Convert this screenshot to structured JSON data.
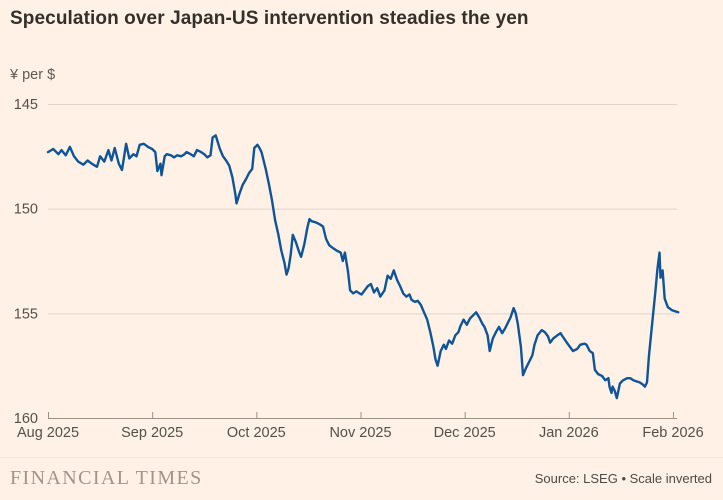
{
  "header": {
    "title": "Speculation over Japan-US intervention steadies the yen"
  },
  "footer": {
    "brand": "FINANCIAL TIMES",
    "source": "Source: LSEG • Scale inverted"
  },
  "chart_data": {
    "type": "line",
    "title": "Speculation over Japan-US intervention steadies the yen",
    "unit_label": "¥ per $",
    "scale_note": "Scale inverted",
    "grid": true,
    "legend": "none",
    "colors": {
      "background": "#FFF1E5",
      "line": "#0F5499",
      "gridline": "#E2D5C7",
      "axis": "#9C9186",
      "tick_label": "#54504A",
      "title_text": "#33302C",
      "brand_text": "#A29487",
      "source_text": "#4F4A45"
    },
    "x_axis": {
      "ticks": [
        "Aug 2025",
        "Sep 2025",
        "Oct 2025",
        "Nov 2025",
        "Dec 2025",
        "Jan 2026",
        "Feb 2026"
      ],
      "unit": "months"
    },
    "y_axis": {
      "ticks": [
        145,
        150,
        155,
        160
      ],
      "range": [
        145,
        160
      ],
      "inverted": true
    },
    "series": [
      {
        "name": "Yen per US dollar",
        "x_unit": "months since 1 Aug 2025",
        "points": [
          [
            0.0,
            147.3
          ],
          [
            0.05,
            147.15
          ],
          [
            0.1,
            147.4
          ],
          [
            0.13,
            147.2
          ],
          [
            0.17,
            147.45
          ],
          [
            0.21,
            147.05
          ],
          [
            0.25,
            147.5
          ],
          [
            0.29,
            147.75
          ],
          [
            0.34,
            147.9
          ],
          [
            0.38,
            147.7
          ],
          [
            0.42,
            147.85
          ],
          [
            0.47,
            148.0
          ],
          [
            0.5,
            147.5
          ],
          [
            0.54,
            147.75
          ],
          [
            0.58,
            147.2
          ],
          [
            0.61,
            147.7
          ],
          [
            0.64,
            147.1
          ],
          [
            0.68,
            147.85
          ],
          [
            0.71,
            148.15
          ],
          [
            0.75,
            146.9
          ],
          [
            0.78,
            147.6
          ],
          [
            0.82,
            147.4
          ],
          [
            0.85,
            147.5
          ],
          [
            0.88,
            146.95
          ],
          [
            0.92,
            146.9
          ],
          [
            0.96,
            147.05
          ],
          [
            1.0,
            147.15
          ],
          [
            1.03,
            147.3
          ],
          [
            1.05,
            148.2
          ],
          [
            1.08,
            147.85
          ],
          [
            1.09,
            148.4
          ],
          [
            1.12,
            147.5
          ],
          [
            1.14,
            147.4
          ],
          [
            1.18,
            147.45
          ],
          [
            1.21,
            147.55
          ],
          [
            1.24,
            147.45
          ],
          [
            1.28,
            147.5
          ],
          [
            1.31,
            147.4
          ],
          [
            1.33,
            147.3
          ],
          [
            1.37,
            147.4
          ],
          [
            1.4,
            147.5
          ],
          [
            1.43,
            147.2
          ],
          [
            1.47,
            147.3
          ],
          [
            1.5,
            147.4
          ],
          [
            1.53,
            147.55
          ],
          [
            1.56,
            147.45
          ],
          [
            1.58,
            146.6
          ],
          [
            1.61,
            146.5
          ],
          [
            1.65,
            147.15
          ],
          [
            1.68,
            147.5
          ],
          [
            1.71,
            147.7
          ],
          [
            1.74,
            147.95
          ],
          [
            1.77,
            148.5
          ],
          [
            1.8,
            149.35
          ],
          [
            1.81,
            149.75
          ],
          [
            1.84,
            149.25
          ],
          [
            1.87,
            148.85
          ],
          [
            1.9,
            148.6
          ],
          [
            1.93,
            148.3
          ],
          [
            1.96,
            148.1
          ],
          [
            1.98,
            147.1
          ],
          [
            2.01,
            146.95
          ],
          [
            2.03,
            147.1
          ],
          [
            2.05,
            147.3
          ],
          [
            2.07,
            147.7
          ],
          [
            2.09,
            148.1
          ],
          [
            2.12,
            148.8
          ],
          [
            2.15,
            149.6
          ],
          [
            2.18,
            150.55
          ],
          [
            2.21,
            151.2
          ],
          [
            2.24,
            152.0
          ],
          [
            2.27,
            152.6
          ],
          [
            2.29,
            153.15
          ],
          [
            2.31,
            152.85
          ],
          [
            2.33,
            152.2
          ],
          [
            2.35,
            151.25
          ],
          [
            2.38,
            151.6
          ],
          [
            2.41,
            152.05
          ],
          [
            2.43,
            152.3
          ],
          [
            2.46,
            151.7
          ],
          [
            2.49,
            150.9
          ],
          [
            2.51,
            150.5
          ],
          [
            2.53,
            150.6
          ],
          [
            2.57,
            150.65
          ],
          [
            2.61,
            150.75
          ],
          [
            2.64,
            150.85
          ],
          [
            2.67,
            151.45
          ],
          [
            2.7,
            151.75
          ],
          [
            2.74,
            151.9
          ],
          [
            2.77,
            152.0
          ],
          [
            2.81,
            152.1
          ],
          [
            2.83,
            152.5
          ],
          [
            2.85,
            152.1
          ],
          [
            2.88,
            153.0
          ],
          [
            2.9,
            153.9
          ],
          [
            2.93,
            154.05
          ],
          [
            2.96,
            153.95
          ],
          [
            2.99,
            154.05
          ],
          [
            3.01,
            154.1
          ],
          [
            3.04,
            153.9
          ],
          [
            3.07,
            153.7
          ],
          [
            3.1,
            153.6
          ],
          [
            3.13,
            154.0
          ],
          [
            3.16,
            153.8
          ],
          [
            3.19,
            154.2
          ],
          [
            3.23,
            153.9
          ],
          [
            3.26,
            153.2
          ],
          [
            3.29,
            153.35
          ],
          [
            3.32,
            152.95
          ],
          [
            3.35,
            153.4
          ],
          [
            3.38,
            153.7
          ],
          [
            3.41,
            154.05
          ],
          [
            3.44,
            154.2
          ],
          [
            3.47,
            154.1
          ],
          [
            3.49,
            154.35
          ],
          [
            3.52,
            154.45
          ],
          [
            3.55,
            154.4
          ],
          [
            3.58,
            154.6
          ],
          [
            3.61,
            154.95
          ],
          [
            3.64,
            155.3
          ],
          [
            3.67,
            155.9
          ],
          [
            3.7,
            156.6
          ],
          [
            3.72,
            157.2
          ],
          [
            3.74,
            157.5
          ],
          [
            3.77,
            156.8
          ],
          [
            3.8,
            156.5
          ],
          [
            3.82,
            156.7
          ],
          [
            3.85,
            156.3
          ],
          [
            3.88,
            156.45
          ],
          [
            3.91,
            156.05
          ],
          [
            3.94,
            155.9
          ],
          [
            3.96,
            155.6
          ],
          [
            3.99,
            155.3
          ],
          [
            4.02,
            155.55
          ],
          [
            4.05,
            155.25
          ],
          [
            4.08,
            155.1
          ],
          [
            4.11,
            154.95
          ],
          [
            4.14,
            155.2
          ],
          [
            4.17,
            155.5
          ],
          [
            4.19,
            155.65
          ],
          [
            4.22,
            156.05
          ],
          [
            4.24,
            156.8
          ],
          [
            4.27,
            156.2
          ],
          [
            4.3,
            155.9
          ],
          [
            4.33,
            155.65
          ],
          [
            4.36,
            155.95
          ],
          [
            4.39,
            155.7
          ],
          [
            4.42,
            155.4
          ],
          [
            4.44,
            155.2
          ],
          [
            4.47,
            154.75
          ],
          [
            4.49,
            155.0
          ],
          [
            4.51,
            155.5
          ],
          [
            4.54,
            156.6
          ],
          [
            4.56,
            157.95
          ],
          [
            4.59,
            157.6
          ],
          [
            4.62,
            157.3
          ],
          [
            4.65,
            157.0
          ],
          [
            4.67,
            156.5
          ],
          [
            4.7,
            156.05
          ],
          [
            4.74,
            155.8
          ],
          [
            4.77,
            155.9
          ],
          [
            4.8,
            156.1
          ],
          [
            4.82,
            156.4
          ],
          [
            4.85,
            156.2
          ],
          [
            4.89,
            156.05
          ],
          [
            4.92,
            155.95
          ],
          [
            4.94,
            156.1
          ],
          [
            4.98,
            156.4
          ],
          [
            5.01,
            156.6
          ],
          [
            5.04,
            156.8
          ],
          [
            5.08,
            156.7
          ],
          [
            5.11,
            156.5
          ],
          [
            5.15,
            156.45
          ],
          [
            5.17,
            156.5
          ],
          [
            5.2,
            156.8
          ],
          [
            5.23,
            156.9
          ],
          [
            5.25,
            157.7
          ],
          [
            5.28,
            157.9
          ],
          [
            5.32,
            158.0
          ],
          [
            5.35,
            158.2
          ],
          [
            5.38,
            158.1
          ],
          [
            5.39,
            158.5
          ],
          [
            5.41,
            158.8
          ],
          [
            5.42,
            158.5
          ],
          [
            5.44,
            158.7
          ],
          [
            5.46,
            159.05
          ],
          [
            5.49,
            158.35
          ],
          [
            5.52,
            158.2
          ],
          [
            5.56,
            158.1
          ],
          [
            5.59,
            158.1
          ],
          [
            5.62,
            158.2
          ],
          [
            5.65,
            158.25
          ],
          [
            5.68,
            158.3
          ],
          [
            5.71,
            158.4
          ],
          [
            5.73,
            158.5
          ],
          [
            5.75,
            158.3
          ],
          [
            5.77,
            157.0
          ],
          [
            5.79,
            156.0
          ],
          [
            5.81,
            155.0
          ],
          [
            5.83,
            154.0
          ],
          [
            5.85,
            152.9
          ],
          [
            5.87,
            152.1
          ],
          [
            5.88,
            153.3
          ],
          [
            5.9,
            152.95
          ],
          [
            5.92,
            154.3
          ],
          [
            5.95,
            154.7
          ],
          [
            5.99,
            154.85
          ],
          [
            6.05,
            154.95
          ]
        ]
      }
    ]
  }
}
